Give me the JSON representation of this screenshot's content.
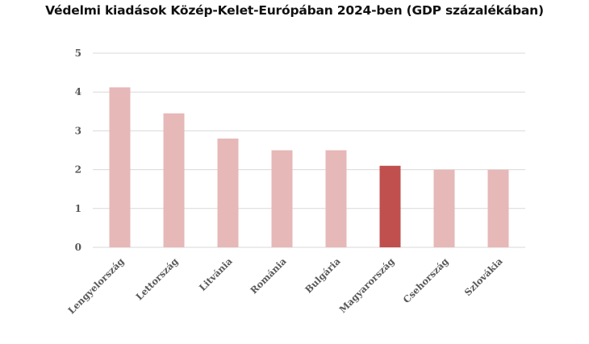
{
  "chart_data": {
    "type": "bar",
    "title": "Védelmi kiadások Közép-Kelet-Európában 2024-ben (GDP százalékában)",
    "categories": [
      "Lengyelország",
      "Lettország",
      "Litvánia",
      "Románia",
      "Bulgária",
      "Magyarország",
      "Csehország",
      "Szlovákia"
    ],
    "values": [
      4.12,
      3.45,
      2.8,
      2.5,
      2.5,
      2.1,
      2.0,
      2.0
    ],
    "highlight": "Magyarország",
    "colors": {
      "default": "#e6b8b7",
      "highlight": "#c0504d",
      "grid": "#d9d9d9"
    },
    "xlabel": "",
    "ylabel": "",
    "ylim": [
      0,
      5
    ],
    "yticks": [
      "0",
      "1",
      "2",
      "3",
      "4",
      "5"
    ],
    "grid": true,
    "legend": "none"
  }
}
